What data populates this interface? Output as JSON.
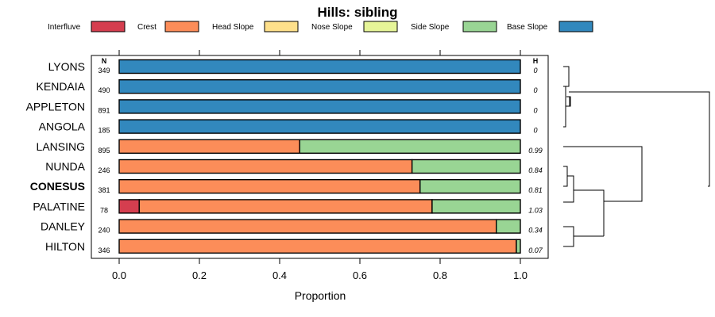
{
  "chart_data": {
    "type": "bar",
    "orientation": "horizontal",
    "stacked": true,
    "title": "Hills: sibling",
    "xlabel": "Proportion",
    "xlim": [
      0,
      1
    ],
    "xticks": [
      "0.0",
      "0.2",
      "0.4",
      "0.6",
      "0.8",
      "1.0"
    ],
    "n_header": "N",
    "h_header": "H",
    "highlight": "CONESUS",
    "legend": [
      {
        "name": "Interfluve",
        "color": "#d53e4f"
      },
      {
        "name": "Crest",
        "color": "#fc8d59"
      },
      {
        "name": "Head Slope",
        "color": "#fee08b"
      },
      {
        "name": "Nose Slope",
        "color": "#e6f598"
      },
      {
        "name": "Side Slope",
        "color": "#99d594"
      },
      {
        "name": "Base Slope",
        "color": "#3288bd"
      }
    ],
    "categories": [
      "LYONS",
      "KENDAIA",
      "APPLETON",
      "ANGOLA",
      "LANSING",
      "NUNDA",
      "CONESUS",
      "PALATINE",
      "DANLEY",
      "HILTON"
    ],
    "n": [
      "349",
      "490",
      "891",
      "185",
      "895",
      "246",
      "381",
      "78",
      "240",
      "346"
    ],
    "h": [
      "0",
      "0",
      "0",
      "0",
      "0.99",
      "0.84",
      "0.81",
      "1.03",
      "0.34",
      "0.07"
    ],
    "series": [
      {
        "name": "Interfluve",
        "values": [
          0,
          0,
          0,
          0,
          0,
          0,
          0,
          0.05,
          0,
          0
        ]
      },
      {
        "name": "Crest",
        "values": [
          0,
          0,
          0,
          0,
          0.45,
          0.73,
          0.75,
          0.73,
          0.94,
          0.99
        ]
      },
      {
        "name": "Head Slope",
        "values": [
          0,
          0,
          0,
          0,
          0,
          0,
          0,
          0,
          0,
          0
        ]
      },
      {
        "name": "Nose Slope",
        "values": [
          0,
          0,
          0,
          0,
          0,
          0,
          0,
          0,
          0,
          0
        ]
      },
      {
        "name": "Side Slope",
        "values": [
          0,
          0,
          0,
          0,
          0.55,
          0.27,
          0.25,
          0.22,
          0.06,
          0.01
        ]
      },
      {
        "name": "Base Slope",
        "values": [
          1,
          1,
          1,
          1,
          0,
          0,
          0,
          0,
          0,
          0
        ]
      }
    ],
    "dendrogram": {
      "type": "hierarchical-clustering",
      "groups": [
        [
          "LYONS",
          "KENDAIA",
          "APPLETON",
          "ANGOLA"
        ],
        [
          "LANSING",
          "NUNDA",
          "CONESUS",
          "PALATINE",
          "DANLEY",
          "HILTON"
        ]
      ]
    }
  }
}
